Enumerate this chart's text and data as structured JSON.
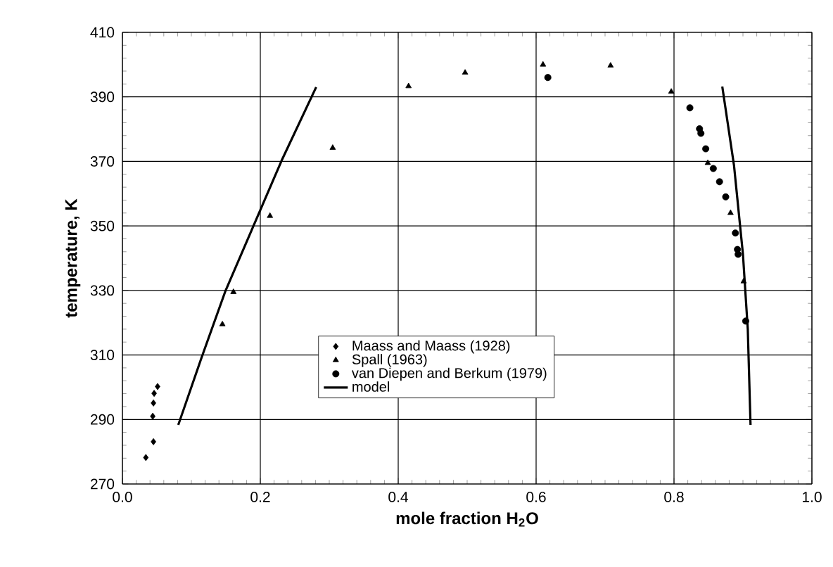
{
  "chart_data": {
    "type": "scatter",
    "xlabel": "mole fraction H$_{2}$O",
    "ylabel": "temperature, K",
    "xlim": [
      0,
      1
    ],
    "ylim": [
      270,
      410
    ],
    "xticks": [
      {
        "value": 0,
        "label": "0.0"
      },
      {
        "value": 0.2,
        "label": "0.2"
      },
      {
        "value": 0.4,
        "label": "0.4"
      },
      {
        "value": 0.6,
        "label": "0.6"
      },
      {
        "value": 0.8,
        "label": "0.8"
      },
      {
        "value": 1,
        "label": "1.0"
      }
    ],
    "yticks": [
      270,
      290,
      310,
      330,
      350,
      370,
      390,
      410
    ],
    "grid": true,
    "legend": "bottom",
    "series": [
      {
        "name": "Maass and Maass (1928)",
        "marker": "diamond",
        "color": "#000000",
        "x": [
          0.034,
          0.045,
          0.044,
          0.045,
          0.046,
          0.051
        ],
        "values": [
          278.2,
          283.1,
          291.0,
          295.1,
          298.1,
          300.2
        ]
      },
      {
        "name": "Spall (1963)",
        "marker": "triangle",
        "color": "#000000",
        "x": [
          0.145,
          0.161,
          0.214,
          0.305,
          0.415,
          0.497,
          0.61,
          0.708,
          0.796,
          0.849,
          0.882,
          0.901
        ],
        "values": [
          319.5,
          329.5,
          353.1,
          374.2,
          393.3,
          397.5,
          400.0,
          399.7,
          391.6,
          369.5,
          354.0,
          332.8
        ]
      },
      {
        "name": "van Diepen and Berkum (1979)",
        "marker": "circle",
        "color": "#000000",
        "x": [
          0.617,
          0.823,
          0.837,
          0.839,
          0.846,
          0.857,
          0.866,
          0.875,
          0.889,
          0.892,
          0.893,
          0.904
        ],
        "values": [
          396.0,
          386.6,
          380.1,
          378.7,
          373.9,
          367.8,
          363.7,
          359.0,
          347.8,
          342.7,
          341.2,
          320.5
        ]
      },
      {
        "name": "model",
        "type": "line",
        "marker": "none",
        "line_style": "solid",
        "color": "#000000",
        "x": [
          0.081,
          0.115,
          0.149,
          0.187,
          0.231,
          0.281,
          null,
          0.87,
          0.887,
          0.9,
          0.907,
          0.911
        ],
        "values": [
          288.3,
          309.3,
          329.6,
          348.5,
          370.3,
          393.0,
          null,
          393.2,
          368.8,
          341.2,
          318.0,
          288.3
        ]
      }
    ]
  }
}
